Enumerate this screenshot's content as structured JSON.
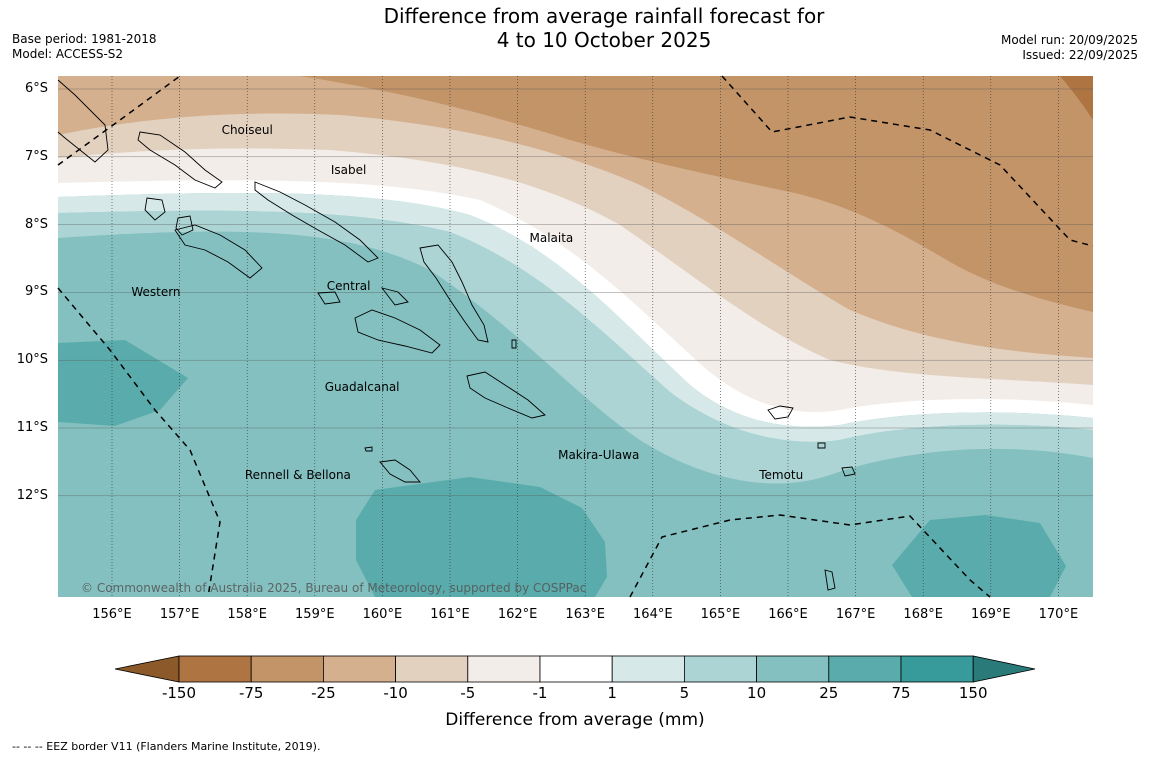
{
  "title": {
    "line1": "Difference from average rainfall forecast for",
    "line2": "4 to 10 October 2025"
  },
  "meta_left": {
    "base_period": "Base period: 1981-2018",
    "model": "Model: ACCESS-S2"
  },
  "meta_right": {
    "model_run": "Model run: 20/09/2025",
    "issued": "Issued: 22/09/2025"
  },
  "map": {
    "lat_labels": [
      {
        "lat": -6,
        "label": "6°S"
      },
      {
        "lat": -7,
        "label": "7°S"
      },
      {
        "lat": -8,
        "label": "8°S"
      },
      {
        "lat": -9,
        "label": "9°S"
      },
      {
        "lat": -10,
        "label": "10°S"
      },
      {
        "lat": -11,
        "label": "11°S"
      },
      {
        "lat": -12,
        "label": "12°S"
      }
    ],
    "lon_labels": [
      {
        "lon": 156,
        "label": "156°E"
      },
      {
        "lon": 157,
        "label": "157°E"
      },
      {
        "lon": 158,
        "label": "158°E"
      },
      {
        "lon": 159,
        "label": "159°E"
      },
      {
        "lon": 160,
        "label": "160°E"
      },
      {
        "lon": 161,
        "label": "161°E"
      },
      {
        "lon": 162,
        "label": "162°E"
      },
      {
        "lon": 163,
        "label": "163°E"
      },
      {
        "lon": 164,
        "label": "164°E"
      },
      {
        "lon": 165,
        "label": "165°E"
      },
      {
        "lon": 166,
        "label": "166°E"
      },
      {
        "lon": 167,
        "label": "167°E"
      },
      {
        "lon": 168,
        "label": "168°E"
      },
      {
        "lon": 169,
        "label": "169°E"
      },
      {
        "lon": 170,
        "label": "170°E"
      }
    ],
    "regions": [
      {
        "name": "Choiseul",
        "lon": 158.0,
        "lat": -6.61
      },
      {
        "name": "Isabel",
        "lon": 159.5,
        "lat": -7.2
      },
      {
        "name": "Malaita",
        "lon": 162.5,
        "lat": -8.2
      },
      {
        "name": "Western",
        "lon": 156.65,
        "lat": -9.0
      },
      {
        "name": "Central",
        "lon": 159.5,
        "lat": -8.9
      },
      {
        "name": "Guadalcanal",
        "lon": 159.7,
        "lat": -10.4
      },
      {
        "name": "Makira-Ulawa",
        "lon": 163.2,
        "lat": -11.4
      },
      {
        "name": "Rennell & Bellona",
        "lon": 158.75,
        "lat": -11.7
      },
      {
        "name": "Temotu",
        "lon": 165.9,
        "lat": -11.7
      }
    ],
    "copyright": "© Commonwealth of Australia 2025, Bureau of Meteorology, supported by COSPPac"
  },
  "colorbar": {
    "ticks": [
      "-150",
      "-75",
      "-25",
      "-10",
      "-5",
      "-1",
      "1",
      "5",
      "10",
      "25",
      "75",
      "150"
    ],
    "colors": [
      "#8c5a2a",
      "#ae7442",
      "#c29468",
      "#d4b08f",
      "#e3d1c0",
      "#f2ede8",
      "#ffffff",
      "#d6e9e8",
      "#acd4d4",
      "#84c0c0",
      "#5aabab",
      "#369b9a",
      "#2a7a7a"
    ],
    "label": "Difference from average (mm)"
  },
  "legend_note": "--  --  -- EEZ border V11 (Flanders Marine Institute, 2019)."
}
